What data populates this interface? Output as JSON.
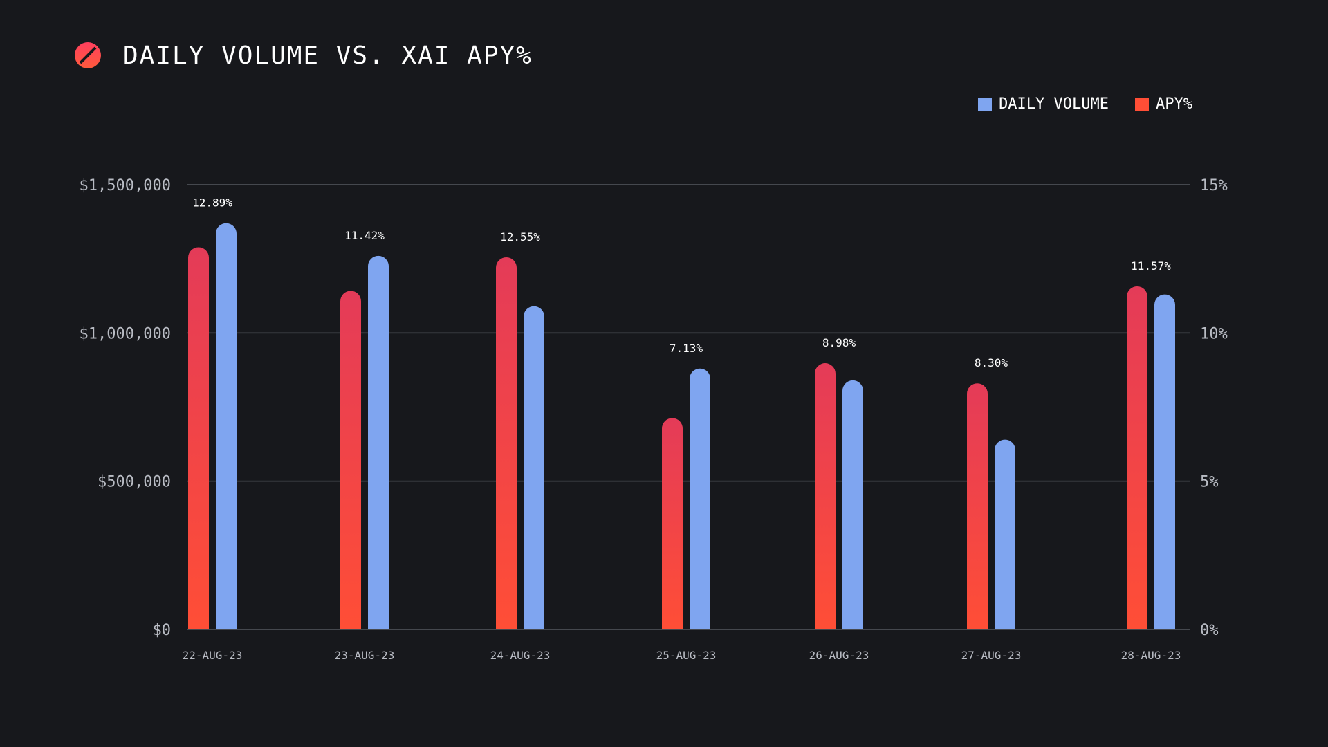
{
  "header": {
    "title": "DAILY VOLUME VS. XAI APY%",
    "logo_icon": "slashed-circle-logo-icon"
  },
  "colors": {
    "background": "#17181c",
    "volume": "#7fa5f0",
    "apy_top": "#e43b58",
    "apy_bottom": "#ff4e36",
    "logo_top": "#ff3f5e",
    "logo_bottom": "#ff5a3c",
    "gridline": "#55585f"
  },
  "chart_data": {
    "type": "bar",
    "title": "DAILY VOLUME VS. XAI APY%",
    "categories": [
      "22-AUG-23",
      "23-AUG-23",
      "24-AUG-23",
      "25-AUG-23",
      "26-AUG-23",
      "27-AUG-23",
      "28-AUG-23"
    ],
    "series": [
      {
        "name": "APY%",
        "axis": "right",
        "unit": "%",
        "values": [
          12.89,
          11.42,
          12.55,
          7.13,
          8.98,
          8.3,
          11.57
        ],
        "data_labels": [
          "12.89%",
          "11.42%",
          "12.55%",
          "7.13%",
          "8.98%",
          "8.30%",
          "11.57%"
        ]
      },
      {
        "name": "DAILY VOLUME",
        "axis": "left",
        "unit": "$",
        "values": [
          1370000,
          1260000,
          1090000,
          880000,
          840000,
          640000,
          1130000
        ]
      }
    ],
    "legend": [
      "DAILY VOLUME",
      "APY%"
    ],
    "legend_position": "top-right",
    "y_left": {
      "range": [
        0,
        1500000
      ],
      "ticks": [
        0,
        500000,
        1000000,
        1500000
      ],
      "tick_labels": [
        "$0",
        "$500,000",
        "$1,000,000",
        "$1,500,000"
      ]
    },
    "y_right": {
      "range": [
        0,
        15
      ],
      "ticks": [
        0,
        5,
        10,
        15
      ],
      "tick_labels": [
        "0%",
        "5%",
        "10%",
        "15%"
      ]
    },
    "grid": true
  }
}
